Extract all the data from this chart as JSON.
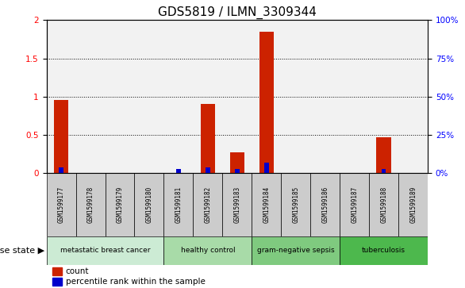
{
  "title": "GDS5819 / ILMN_3309344",
  "samples": [
    "GSM1599177",
    "GSM1599178",
    "GSM1599179",
    "GSM1599180",
    "GSM1599181",
    "GSM1599182",
    "GSM1599183",
    "GSM1599184",
    "GSM1599185",
    "GSM1599186",
    "GSM1599187",
    "GSM1599188",
    "GSM1599189"
  ],
  "count_values": [
    0.95,
    0.0,
    0.0,
    0.0,
    0.0,
    0.9,
    0.27,
    1.85,
    0.0,
    0.0,
    0.0,
    0.47,
    0.0
  ],
  "percentile_values": [
    0.07,
    0.0,
    0.0,
    0.0,
    0.05,
    0.07,
    0.05,
    0.13,
    0.0,
    0.0,
    0.0,
    0.05,
    0.0
  ],
  "ylim": [
    0,
    2.0
  ],
  "yticks_left": [
    0,
    0.5,
    1.0,
    1.5,
    2.0
  ],
  "yticks_right": [
    0,
    25,
    50,
    75,
    100
  ],
  "disease_groups": [
    {
      "label": "metastatic breast cancer",
      "start": 0,
      "end": 3,
      "color": "#ccebd4"
    },
    {
      "label": "healthy control",
      "start": 4,
      "end": 6,
      "color": "#a8dba8"
    },
    {
      "label": "gram-negative sepsis",
      "start": 7,
      "end": 9,
      "color": "#7fca7f"
    },
    {
      "label": "tuberculosis",
      "start": 10,
      "end": 12,
      "color": "#4db84d"
    }
  ],
  "bar_color_red": "#cc2200",
  "bar_color_blue": "#0000cc",
  "bar_width": 0.5,
  "blue_bar_width": 0.15,
  "bg_color": "#ffffff",
  "sample_bg_color": "#cccccc",
  "label_fontsize": 9,
  "tick_fontsize": 7.5,
  "title_fontsize": 11
}
